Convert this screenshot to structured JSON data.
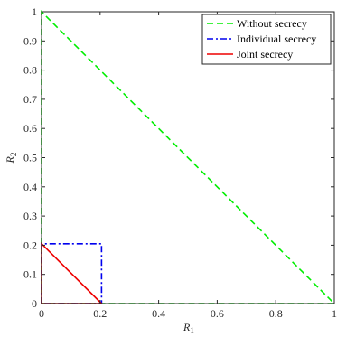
{
  "chart_data": {
    "type": "line",
    "xlabel": "R",
    "xlabel_sub": "1",
    "ylabel": "R",
    "ylabel_sub": "2",
    "xlim": [
      0,
      1
    ],
    "ylim": [
      0,
      1
    ],
    "xticks": [
      "0",
      "0.2",
      "0.4",
      "0.6",
      "0.8",
      "1"
    ],
    "yticks": [
      "0",
      "0.1",
      "0.2",
      "0.3",
      "0.4",
      "0.5",
      "0.6",
      "0.7",
      "0.8",
      "0.9",
      "1"
    ],
    "grid": false,
    "legend_position": "top-right",
    "series": [
      {
        "name": "Without secrecy",
        "color": "#00ee00",
        "style": "dashed",
        "points": [
          [
            0,
            0
          ],
          [
            0,
            1
          ],
          [
            1,
            0
          ],
          [
            0,
            0
          ]
        ]
      },
      {
        "name": "Individual secrecy",
        "color": "#0000ee",
        "style": "dashdot",
        "points": [
          [
            0,
            0
          ],
          [
            0,
            0.205
          ],
          [
            0.205,
            0.205
          ],
          [
            0.205,
            0
          ],
          [
            0,
            0
          ]
        ]
      },
      {
        "name": "Joint secrecy",
        "color": "#ee0000",
        "style": "solid",
        "points": [
          [
            0,
            0
          ],
          [
            0,
            0.205
          ],
          [
            0.205,
            0
          ],
          [
            0,
            0
          ]
        ]
      }
    ]
  }
}
